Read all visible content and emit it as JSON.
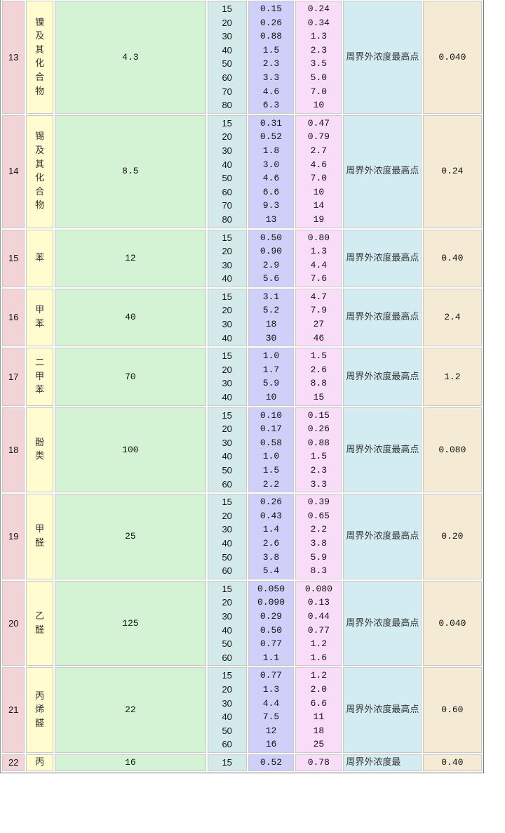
{
  "rows": [
    {
      "no": "13",
      "name": "镍及其化合物",
      "std": "4.3",
      "heights": [
        "15",
        "20",
        "30",
        "40",
        "50",
        "60",
        "70",
        "80"
      ],
      "rate1": [
        "0.15",
        "0.26",
        "0.88",
        "1.5",
        "2.3",
        "3.3",
        "4.6",
        "6.3"
      ],
      "rate2": [
        "0.24",
        "0.34",
        "1.3",
        "2.3",
        "3.5",
        "5.0",
        "7.0",
        "10"
      ],
      "location": "周界外浓度最高点",
      "conc": "0.040"
    },
    {
      "no": "14",
      "name": "锡及其化合物",
      "std": "8.5",
      "heights": [
        "15",
        "20",
        "30",
        "40",
        "50",
        "60",
        "70",
        "80"
      ],
      "rate1": [
        "0.31",
        "0.52",
        "1.8",
        "3.0",
        "4.6",
        "6.6",
        "9.3",
        "13"
      ],
      "rate2": [
        "0.47",
        "0.79",
        "2.7",
        "4.6",
        "7.0",
        "10",
        "14",
        "19"
      ],
      "location": "周界外浓度最高点",
      "conc": "0.24"
    },
    {
      "no": "15",
      "name": "苯",
      "std": "12",
      "heights": [
        "15",
        "20",
        "30",
        "40"
      ],
      "rate1": [
        "0.50",
        "0.90",
        "2.9",
        "5.6"
      ],
      "rate2": [
        "0.80",
        "1.3",
        "4.4",
        "7.6"
      ],
      "location": "周界外浓度最高点",
      "conc": "0.40"
    },
    {
      "no": "16",
      "name": "甲苯",
      "std": "40",
      "heights": [
        "15",
        "20",
        "30",
        "40"
      ],
      "rate1": [
        "3.1",
        "5.2",
        "18",
        "30"
      ],
      "rate2": [
        "4.7",
        "7.9",
        "27",
        "46"
      ],
      "location": "周界外浓度最高点",
      "conc": "2.4"
    },
    {
      "no": "17",
      "name": "二甲苯",
      "std": "70",
      "heights": [
        "15",
        "20",
        "30",
        "40"
      ],
      "rate1": [
        "1.0",
        "1.7",
        "5.9",
        "10"
      ],
      "rate2": [
        "1.5",
        "2.6",
        "8.8",
        "15"
      ],
      "location": "周界外浓度最高点",
      "conc": "1.2"
    },
    {
      "no": "18",
      "name": "酚类",
      "std": "100",
      "heights": [
        "15",
        "20",
        "30",
        "40",
        "50",
        "60"
      ],
      "rate1": [
        "0.10",
        "0.17",
        "0.58",
        "1.0",
        "1.5",
        "2.2"
      ],
      "rate2": [
        "0.15",
        "0.26",
        "0.88",
        "1.5",
        "2.3",
        "3.3"
      ],
      "location": "周界外浓度最高点",
      "conc": "0.080"
    },
    {
      "no": "19",
      "name": "甲醛",
      "std": "25",
      "heights": [
        "15",
        "20",
        "30",
        "40",
        "50",
        "60"
      ],
      "rate1": [
        "0.26",
        "0.43",
        "1.4",
        "2.6",
        "3.8",
        "5.4"
      ],
      "rate2": [
        "0.39",
        "0.65",
        "2.2",
        "3.8",
        "5.9",
        "8.3"
      ],
      "location": "周界外浓度最高点",
      "conc": "0.20"
    },
    {
      "no": "20",
      "name": "乙醛",
      "std": "125",
      "heights": [
        "15",
        "20",
        "30",
        "40",
        "50",
        "60"
      ],
      "rate1": [
        "0.050",
        "0.090",
        "0.29",
        "0.50",
        "0.77",
        "1.1"
      ],
      "rate2": [
        "0.080",
        "0.13",
        "0.44",
        "0.77",
        "1.2",
        "1.6"
      ],
      "location": "周界外浓度最高点",
      "conc": "0.040"
    },
    {
      "no": "21",
      "name": "丙烯醛",
      "std": "22",
      "heights": [
        "15",
        "20",
        "30",
        "40",
        "50",
        "60"
      ],
      "rate1": [
        "0.77",
        "1.3",
        "4.4",
        "7.5",
        "12",
        "16"
      ],
      "rate2": [
        "1.2",
        "2.0",
        "6.6",
        "11",
        "18",
        "25"
      ],
      "location": "周界外浓度最高点",
      "conc": "0.60"
    },
    {
      "no": "22",
      "name": "丙",
      "std": "16",
      "heights": [
        "15"
      ],
      "rate1": [
        "0.52"
      ],
      "rate2": [
        "0.78"
      ],
      "location": "周界外浓度最",
      "conc": "0.40"
    }
  ]
}
